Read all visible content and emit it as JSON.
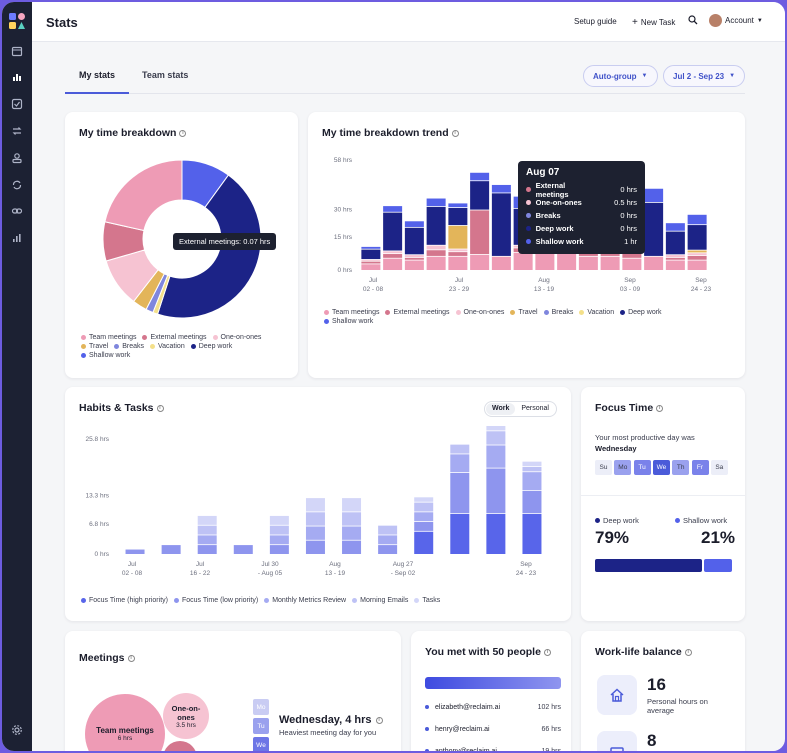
{
  "header": {
    "title": "Stats",
    "setup_guide": "Setup guide",
    "new_task": "New Task",
    "account": "Account"
  },
  "tabs": [
    {
      "label": "My stats",
      "active": true
    },
    {
      "label": "Team stats",
      "active": false
    }
  ],
  "filters": {
    "group": "Auto-group",
    "date_range": "Jul 2 - Sep 23"
  },
  "colors": {
    "team_meetings": "#ee9bb5",
    "external_meetings": "#d4768d",
    "one_on_ones": "#f6c3d2",
    "travel": "#e3b55a",
    "breaks": "#7f86dd",
    "vacation": "#f4e08a",
    "deep_work": "#1c2387",
    "shallow_work": "#5361ea",
    "focus_high": "#5865ea",
    "focus_low": "#8e95ee",
    "monthly_review": "#a5abf2",
    "morning_emails": "#bec2f5",
    "tasks": "#d3d6f8"
  },
  "time_breakdown": {
    "title": "My time breakdown",
    "tooltip": "External meetings: 0.07 hrs",
    "legend": [
      "Team meetings",
      "External meetings",
      "One-on-ones",
      "Travel",
      "Breaks",
      "Vacation",
      "Deep work",
      "Shallow work"
    ],
    "chart_data": {
      "type": "pie",
      "labels": [
        "Shallow work",
        "Deep work",
        "Vacation",
        "Breaks",
        "Travel",
        "One-on-ones",
        "External meetings",
        "Team meetings"
      ],
      "values": [
        10,
        45,
        1,
        1.5,
        3,
        10,
        8,
        21.5
      ]
    }
  },
  "trend": {
    "title": "My time breakdown trend",
    "y_ticks": [
      "58 hrs",
      "30 hrs",
      "15 hrs",
      "0 hrs"
    ],
    "x_ticks": [
      {
        "line1": "Jul",
        "line2": "02 - 08"
      },
      {
        "line1": "Jul",
        "line2": "23 - 29"
      },
      {
        "line1": "Aug",
        "line2": "13 - 19"
      },
      {
        "line1": "Sep",
        "line2": "03 - 09"
      },
      {
        "line1": "Sep",
        "line2": "24 - 23"
      }
    ],
    "legend": [
      "Team meetings",
      "External meetings",
      "One-on-ones",
      "Travel",
      "Breaks",
      "Vacation",
      "Deep work",
      "Shallow work"
    ],
    "tooltip": {
      "title": "Aug 07",
      "rows": [
        {
          "label": "External meetings",
          "value": "0 hrs",
          "color": "#d4768d"
        },
        {
          "label": "One-on-ones",
          "value": "0.5 hrs",
          "color": "#f6c3d2"
        },
        {
          "label": "Breaks",
          "value": "0 hrs",
          "color": "#7f86dd"
        },
        {
          "label": "Deep work",
          "value": "0 hrs",
          "color": "#1c2387"
        },
        {
          "label": "Shallow work",
          "value": "1 hr",
          "color": "#5361ea"
        }
      ]
    },
    "chart_data": {
      "type": "bar",
      "stacked": true,
      "ylim": [
        0,
        58
      ],
      "series_order": [
        "team_meetings",
        "external_meetings",
        "one_on_ones",
        "travel",
        "deep_work",
        "shallow_work"
      ],
      "bars": [
        [
          3,
          1,
          0.5,
          0,
          5,
          1
        ],
        [
          6,
          2,
          1,
          0,
          20,
          3
        ],
        [
          5,
          1,
          1,
          0,
          14,
          3
        ],
        [
          7,
          3,
          2,
          0,
          20,
          4
        ],
        [
          7,
          2,
          1,
          12,
          9,
          2
        ],
        [
          8,
          23,
          0,
          0,
          15,
          4
        ],
        [
          7,
          0,
          0,
          0,
          33,
          4
        ],
        [
          9,
          2,
          1,
          0,
          19,
          6
        ],
        [
          11,
          3,
          2,
          0,
          20,
          5
        ],
        [
          13,
          0,
          0,
          0,
          15,
          4
        ],
        [
          7,
          2,
          1,
          0,
          14,
          4
        ],
        [
          7,
          1,
          0,
          0,
          14,
          4
        ],
        [
          6,
          3,
          2,
          12,
          9,
          2
        ],
        [
          7,
          0,
          0,
          0,
          28,
          7
        ],
        [
          5,
          1,
          1,
          0,
          12,
          4
        ],
        [
          5,
          2,
          1,
          1,
          13,
          5
        ]
      ]
    }
  },
  "habits": {
    "title": "Habits & Tasks",
    "toggle_work": "Work",
    "toggle_personal": "Personal",
    "y_ticks": [
      "25.8 hrs",
      "13.3 hrs",
      "6.8 hrs",
      "0 hrs"
    ],
    "x_ticks": [
      {
        "line1": "Jul",
        "line2": "02 - 08"
      },
      {
        "line1": "Jul",
        "line2": "16 - 22"
      },
      {
        "line1": "Jul 30",
        "line2": "- Aug 05"
      },
      {
        "line1": "Aug",
        "line2": "13 - 19"
      },
      {
        "line1": "Aug 27",
        "line2": "- Sep 02"
      },
      {
        "line1": "Sep",
        "line2": "24 - 23"
      }
    ],
    "legend": [
      "Focus Time (high priority)",
      "Focus Time (low priority)",
      "Monthly Metrics Review",
      "Morning Emails",
      "Tasks"
    ],
    "chart_data": {
      "type": "bar",
      "stacked": true,
      "ylim": [
        0,
        25.8
      ],
      "series_order": [
        "focus_high",
        "focus_low",
        "monthly_review",
        "morning_emails",
        "tasks"
      ],
      "bars": [
        [
          0,
          1,
          0,
          0,
          0
        ],
        [
          0,
          2,
          0,
          0,
          0
        ],
        [
          0,
          2,
          2,
          2,
          2
        ],
        [
          0,
          2,
          0,
          0,
          0
        ],
        [
          0,
          2,
          2,
          2,
          2
        ],
        [
          0,
          3,
          3,
          3,
          3
        ],
        [
          0,
          3,
          3,
          3,
          3
        ],
        [
          0,
          2,
          2,
          2,
          0
        ],
        [
          5,
          2,
          2,
          2,
          1
        ],
        [
          9,
          9,
          4,
          2,
          0
        ],
        [
          9,
          10,
          5,
          3,
          1
        ],
        [
          9,
          5,
          4,
          1,
          1
        ]
      ]
    }
  },
  "focus_time": {
    "title": "Focus Time",
    "productive_label": "Your most productive day was",
    "productive_day": "Wednesday",
    "days": [
      {
        "label": "Su",
        "level": 0
      },
      {
        "label": "Mo",
        "level": 2
      },
      {
        "label": "Tu",
        "level": 3
      },
      {
        "label": "We",
        "level": 4
      },
      {
        "label": "Th",
        "level": 2
      },
      {
        "label": "Fr",
        "level": 3
      },
      {
        "label": "Sa",
        "level": 0
      }
    ],
    "deep_label": "Deep work",
    "shallow_label": "Shallow work",
    "deep_pct": "79%",
    "shallow_pct": "21%",
    "deep_fraction": 0.79
  },
  "meetings": {
    "title": "Meetings",
    "bubbles": [
      {
        "label": "Team meetings",
        "value": "6 hrs"
      },
      {
        "label": "One-on-ones",
        "value": "3.5 hrs"
      }
    ],
    "mini_days": [
      "Mo",
      "Tu",
      "We"
    ],
    "heaviest_title": "Wednesday, 4 hrs",
    "heaviest_sub": "Heaviest meeting day for you"
  },
  "people": {
    "title": "You met with 50 people",
    "rows": [
      {
        "email": "elizabeth@reclaim.ai",
        "hours": "102 hrs"
      },
      {
        "email": "henry@reclaim.ai",
        "hours": "66 hrs"
      },
      {
        "email": "anthony@reclaim.ai",
        "hours": "19 hrs"
      }
    ]
  },
  "wlb": {
    "title": "Work-life balance",
    "personal_value": "16",
    "personal_label": "Personal hours on average",
    "second_value": "8"
  }
}
